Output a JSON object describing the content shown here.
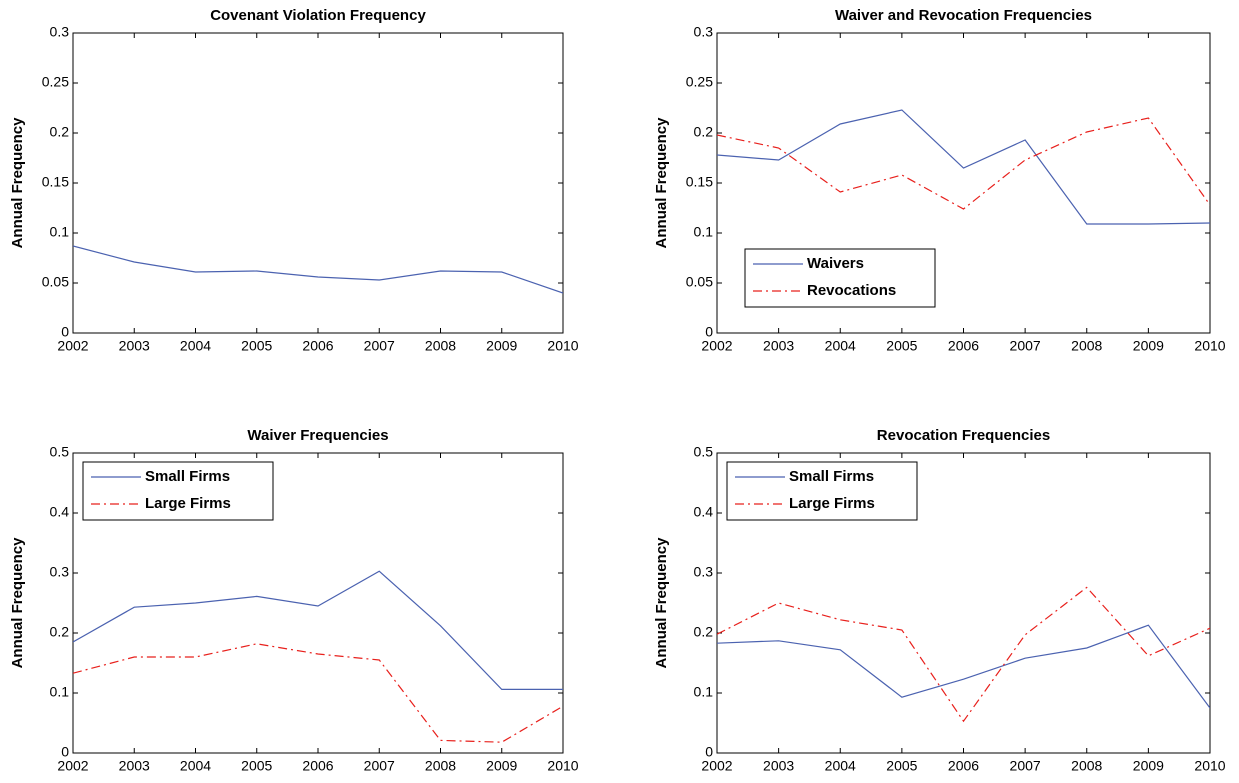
{
  "chart_data": [
    {
      "type": "line",
      "title": "Covenant Violation Frequency",
      "y_label": "Annual Frequency",
      "x": [
        2002,
        2003,
        2004,
        2005,
        2006,
        2007,
        2008,
        2009,
        2010
      ],
      "values": [
        0.087,
        0.071,
        0.061,
        0.062,
        0.056,
        0.053,
        0.062,
        0.061,
        0.04
      ],
      "color": "#4b62b0",
      "xlim": [
        2002,
        2010
      ],
      "xticks": [
        2002,
        2003,
        2004,
        2005,
        2006,
        2007,
        2008,
        2009,
        2010
      ],
      "ylim": [
        0,
        0.3
      ],
      "yticks": [
        0,
        0.05,
        0.1,
        0.15,
        0.2,
        0.25,
        0.3
      ]
    },
    {
      "type": "line",
      "title": "Waiver and Revocation Frequencies",
      "y_label": "Annual Frequency",
      "x": [
        2002,
        2003,
        2004,
        2005,
        2006,
        2007,
        2008,
        2009,
        2010
      ],
      "series": [
        {
          "name": "Waivers",
          "color": "#4b62b0",
          "style": "solid",
          "values": [
            0.178,
            0.173,
            0.209,
            0.223,
            0.165,
            0.193,
            0.109,
            0.109,
            0.11
          ]
        },
        {
          "name": "Revocations",
          "color": "#e8201c",
          "style": "dash-dot",
          "values": [
            0.198,
            0.185,
            0.141,
            0.158,
            0.124,
            0.173,
            0.201,
            0.215,
            0.128
          ]
        }
      ],
      "legend": "lower left",
      "xlim": [
        2002,
        2010
      ],
      "xticks": [
        2002,
        2003,
        2004,
        2005,
        2006,
        2007,
        2008,
        2009,
        2010
      ],
      "ylim": [
        0,
        0.3
      ],
      "yticks": [
        0,
        0.05,
        0.1,
        0.15,
        0.2,
        0.25,
        0.3
      ]
    },
    {
      "type": "line",
      "title": "Waiver Frequencies",
      "y_label": "Annual Frequency",
      "x": [
        2002,
        2003,
        2004,
        2005,
        2006,
        2007,
        2008,
        2009,
        2010
      ],
      "series": [
        {
          "name": "Small Firms",
          "color": "#4b62b0",
          "style": "solid",
          "values": [
            0.185,
            0.243,
            0.25,
            0.261,
            0.245,
            0.303,
            0.212,
            0.106,
            0.106
          ]
        },
        {
          "name": "Large Firms",
          "color": "#e8201c",
          "style": "dash-dot",
          "values": [
            0.133,
            0.16,
            0.16,
            0.182,
            0.165,
            0.155,
            0.021,
            0.018,
            0.078
          ]
        }
      ],
      "legend": "upper left",
      "xlim": [
        2002,
        2010
      ],
      "xticks": [
        2002,
        2003,
        2004,
        2005,
        2006,
        2007,
        2008,
        2009,
        2010
      ],
      "ylim": [
        0,
        0.5
      ],
      "yticks": [
        0,
        0.1,
        0.2,
        0.3,
        0.4,
        0.5
      ]
    },
    {
      "type": "line",
      "title": "Revocation Frequencies",
      "y_label": "Annual Frequency",
      "x": [
        2002,
        2003,
        2004,
        2005,
        2006,
        2007,
        2008,
        2009,
        2010
      ],
      "series": [
        {
          "name": "Small Firms",
          "color": "#4b62b0",
          "style": "solid",
          "values": [
            0.183,
            0.187,
            0.172,
            0.093,
            0.123,
            0.158,
            0.175,
            0.213,
            0.075
          ]
        },
        {
          "name": "Large Firms",
          "color": "#e8201c",
          "style": "dash-dot",
          "values": [
            0.198,
            0.25,
            0.222,
            0.205,
            0.053,
            0.197,
            0.276,
            0.162,
            0.208
          ]
        }
      ],
      "legend": "upper left",
      "xlim": [
        2002,
        2010
      ],
      "xticks": [
        2002,
        2003,
        2004,
        2005,
        2006,
        2007,
        2008,
        2009,
        2010
      ],
      "ylim": [
        0,
        0.5
      ],
      "yticks": [
        0,
        0.1,
        0.2,
        0.3,
        0.4,
        0.5
      ]
    }
  ]
}
